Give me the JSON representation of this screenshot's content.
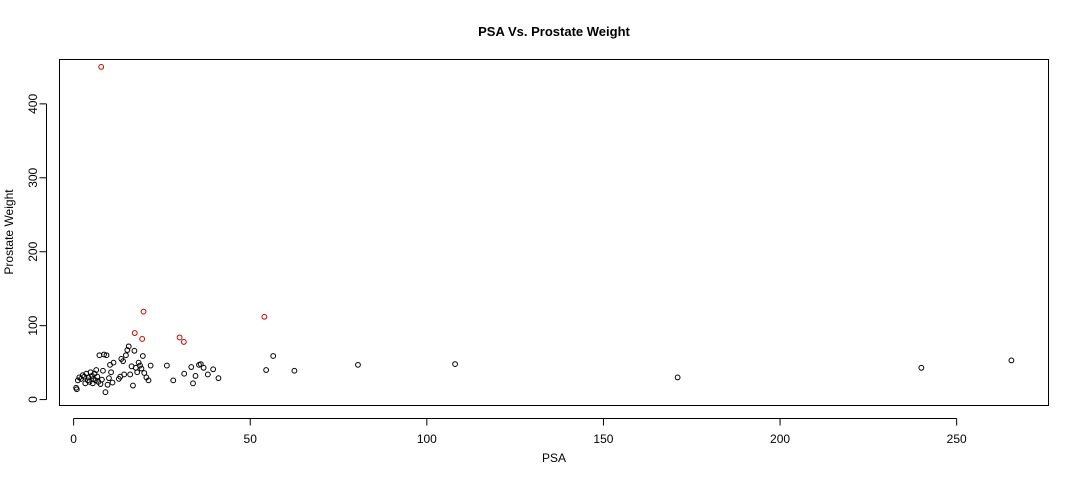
{
  "chart_data": {
    "type": "scatter",
    "title": "PSA Vs. Prostate Weight",
    "xlabel": "PSA",
    "ylabel": "Prostate Weight",
    "xlim": [
      -4,
      276
    ],
    "ylim": [
      -8,
      460
    ],
    "xticks": [
      0,
      50,
      100,
      150,
      200,
      250
    ],
    "yticks": [
      0,
      100,
      200,
      300,
      400
    ],
    "grid": false,
    "legend": "none",
    "series": [
      {
        "color": "#000000",
        "points": [
          [
            0.7,
            16
          ],
          [
            0.9,
            14
          ],
          [
            1.2,
            26
          ],
          [
            1.6,
            30
          ],
          [
            2.1,
            28
          ],
          [
            2.6,
            33
          ],
          [
            3.0,
            31
          ],
          [
            3.3,
            22
          ],
          [
            3.6,
            35
          ],
          [
            4.0,
            26
          ],
          [
            4.2,
            30
          ],
          [
            4.5,
            24
          ],
          [
            4.8,
            37
          ],
          [
            5.2,
            32
          ],
          [
            5.4,
            22
          ],
          [
            5.6,
            28
          ],
          [
            5.9,
            35
          ],
          [
            6.2,
            26
          ],
          [
            6.4,
            40
          ],
          [
            6.7,
            31
          ],
          [
            7.0,
            24
          ],
          [
            7.3,
            60
          ],
          [
            7.6,
            21
          ],
          [
            8.0,
            27
          ],
          [
            8.3,
            39
          ],
          [
            8.6,
            61
          ],
          [
            9.0,
            10
          ],
          [
            9.3,
            60
          ],
          [
            9.6,
            20
          ],
          [
            10.0,
            29
          ],
          [
            10.3,
            47
          ],
          [
            10.6,
            37
          ],
          [
            11.0,
            23
          ],
          [
            11.3,
            50
          ],
          [
            12.8,
            28
          ],
          [
            13.2,
            31
          ],
          [
            13.5,
            55
          ],
          [
            14.0,
            52
          ],
          [
            14.3,
            34
          ],
          [
            14.8,
            60
          ],
          [
            15.2,
            67
          ],
          [
            15.6,
            72
          ],
          [
            16.0,
            34
          ],
          [
            16.4,
            45
          ],
          [
            16.8,
            19
          ],
          [
            17.2,
            66
          ],
          [
            17.6,
            43
          ],
          [
            18.0,
            37
          ],
          [
            18.4,
            50
          ],
          [
            18.8,
            46
          ],
          [
            19.2,
            42
          ],
          [
            19.6,
            59
          ],
          [
            20.0,
            36
          ],
          [
            20.6,
            30
          ],
          [
            21.2,
            26
          ],
          [
            21.8,
            46
          ],
          [
            26.4,
            46
          ],
          [
            28.2,
            26
          ],
          [
            31.3,
            35
          ],
          [
            33.3,
            44
          ],
          [
            33.8,
            22
          ],
          [
            34.5,
            32
          ],
          [
            35.5,
            47
          ],
          [
            36.0,
            48
          ],
          [
            36.8,
            43
          ],
          [
            38.0,
            34
          ],
          [
            39.5,
            41
          ],
          [
            41.0,
            29
          ],
          [
            54.5,
            40
          ],
          [
            56.5,
            59
          ],
          [
            62.5,
            39
          ],
          [
            80.5,
            47
          ],
          [
            108.0,
            48
          ],
          [
            171.0,
            30
          ],
          [
            240.0,
            43
          ],
          [
            265.5,
            53
          ]
        ]
      },
      {
        "color": "#cc0000",
        "points": [
          [
            7.8,
            450
          ],
          [
            17.3,
            90
          ],
          [
            19.4,
            82
          ],
          [
            19.8,
            119
          ],
          [
            30.0,
            84
          ],
          [
            31.2,
            78
          ],
          [
            54.0,
            112
          ]
        ]
      }
    ]
  }
}
